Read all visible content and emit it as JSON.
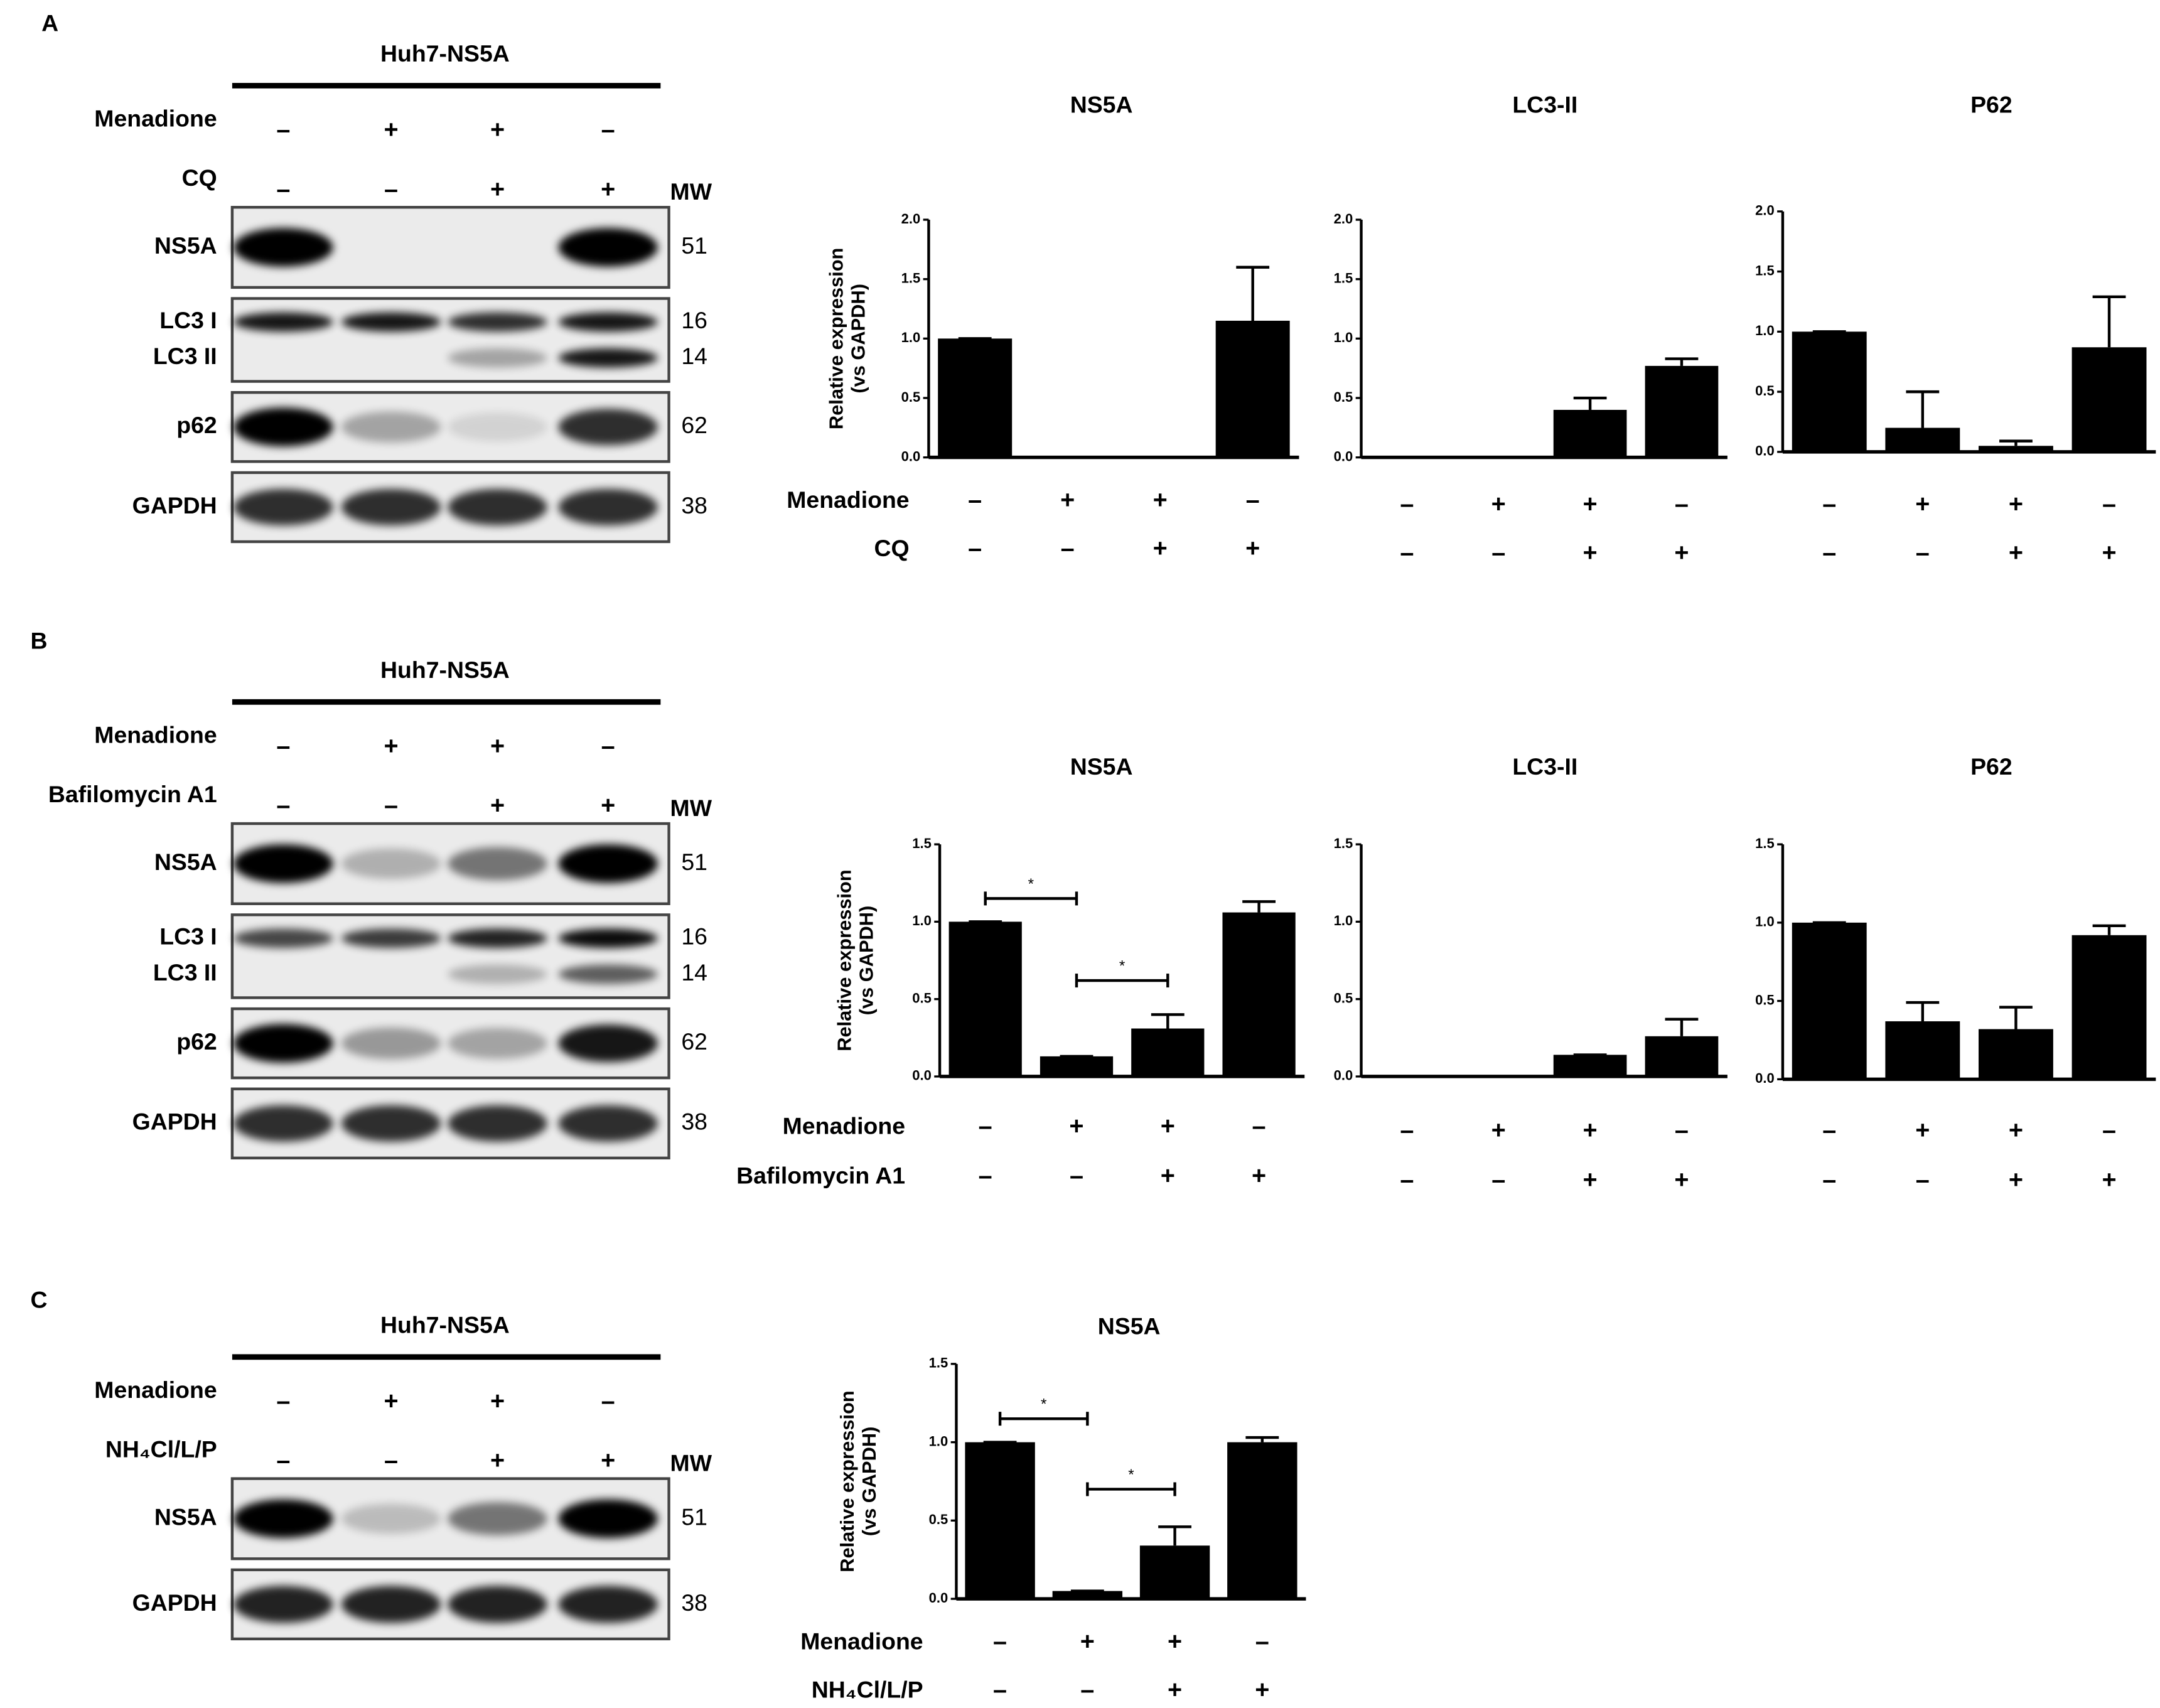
{
  "panel_labels": [
    "A",
    "B",
    "C"
  ],
  "blots": [
    {
      "title": "Huh7-NS5A",
      "treatments": [
        {
          "name": "Menadione",
          "signs": [
            "–",
            "+",
            "+",
            "–"
          ]
        },
        {
          "name": "CQ",
          "signs": [
            "–",
            "–",
            "+",
            "+"
          ]
        }
      ],
      "mw_header": "MW",
      "bands": [
        {
          "labels": [
            "NS5A"
          ],
          "mw": [
            51
          ]
        },
        {
          "labels": [
            "LC3 I",
            "LC3 II"
          ],
          "mw": [
            16,
            14
          ]
        },
        {
          "labels": [
            "p62"
          ],
          "mw": [
            62
          ]
        },
        {
          "labels": [
            "GAPDH"
          ],
          "mw": [
            38
          ]
        }
      ]
    },
    {
      "title": "Huh7-NS5A",
      "treatments": [
        {
          "name": "Menadione",
          "signs": [
            "–",
            "+",
            "+",
            "–"
          ]
        },
        {
          "name": "Bafilomycin A1",
          "signs": [
            "–",
            "–",
            "+",
            "+"
          ]
        }
      ],
      "mw_header": "MW",
      "bands": [
        {
          "labels": [
            "NS5A"
          ],
          "mw": [
            51
          ]
        },
        {
          "labels": [
            "LC3 I",
            "LC3 II"
          ],
          "mw": [
            16,
            14
          ]
        },
        {
          "labels": [
            "p62"
          ],
          "mw": [
            62
          ]
        },
        {
          "labels": [
            "GAPDH"
          ],
          "mw": [
            38
          ]
        }
      ]
    },
    {
      "title": "Huh7-NS5A",
      "treatments": [
        {
          "name": "Menadione",
          "signs": [
            "–",
            "+",
            "+",
            "–"
          ]
        },
        {
          "name": "NH₄Cl/L/P",
          "signs": [
            "–",
            "–",
            "+",
            "+"
          ]
        }
      ],
      "mw_header": "MW",
      "bands": [
        {
          "labels": [
            "NS5A"
          ],
          "mw": [
            51
          ]
        },
        {
          "labels": [
            "GAPDH"
          ],
          "mw": [
            38
          ]
        }
      ]
    }
  ],
  "chart_data": [
    {
      "type": "bar",
      "title": "NS5A",
      "ylabel": [
        "Relative expression",
        "(vs GAPDH)"
      ],
      "color": "#000000",
      "values": [
        1.0,
        0,
        0,
        1.15
      ],
      "errors": [
        0,
        0,
        0,
        0.45
      ],
      "ylim": [
        0,
        2
      ],
      "yticks": [
        {
          "value": 0,
          "label": "0.0"
        },
        0.5,
        {
          "value": 1,
          "label": "1.0"
        },
        1.5,
        {
          "value": 2,
          "label": "2.0"
        }
      ],
      "conditions": [
        {
          "name": "Menadione",
          "signs": [
            "–",
            "+",
            "+",
            "–"
          ]
        },
        {
          "name": "CQ",
          "signs": [
            "–",
            "–",
            "+",
            "+"
          ]
        }
      ]
    },
    {
      "type": "bar",
      "title": "LC3-II",
      "color": "#000000",
      "values": [
        0,
        0,
        0.4,
        0.77
      ],
      "errors": [
        0,
        0,
        0.1,
        0.06
      ],
      "ylim": [
        0,
        2
      ],
      "yticks": [
        {
          "value": 0,
          "label": "0.0"
        },
        0.5,
        {
          "value": 1,
          "label": "1.0"
        },
        1.5,
        {
          "value": 2,
          "label": "2.0"
        }
      ],
      "conditions": [
        {
          "signs": [
            "–",
            "+",
            "+",
            "–"
          ]
        },
        {
          "signs": [
            "–",
            "–",
            "+",
            "+"
          ]
        }
      ]
    },
    {
      "type": "bar",
      "title": "P62",
      "color": "#000000",
      "values": [
        1.0,
        0.2,
        0.05,
        0.87
      ],
      "errors": [
        0,
        0.3,
        0.04,
        0.42
      ],
      "ylim": [
        0,
        2
      ],
      "yticks": [
        {
          "value": 0,
          "label": "0.0"
        },
        0.5,
        {
          "value": 1,
          "label": "1.0"
        },
        1.5,
        {
          "value": 2,
          "label": "2.0"
        }
      ],
      "conditions": [
        {
          "signs": [
            "–",
            "+",
            "+",
            "–"
          ]
        },
        {
          "signs": [
            "–",
            "–",
            "+",
            "+"
          ]
        }
      ]
    },
    {
      "type": "bar",
      "title": "NS5A",
      "ylabel": [
        "Relative expression",
        "(vs GAPDH)"
      ],
      "color": "#000000",
      "values": [
        1.0,
        0.13,
        0.31,
        1.06
      ],
      "errors": [
        0,
        0,
        0.09,
        0.07
      ],
      "ylim": [
        0,
        1.5
      ],
      "yticks": [
        {
          "value": 0,
          "label": "0.0"
        },
        0.5,
        {
          "value": 1,
          "label": "1.0"
        },
        1.5
      ],
      "significance": [
        {
          "text": "*",
          "pair": [
            0,
            1
          ],
          "y": 1.15
        },
        {
          "text": "*",
          "pair": [
            1,
            2
          ],
          "y": 0.62
        }
      ],
      "conditions": [
        {
          "name": "Menadione",
          "signs": [
            "–",
            "+",
            "+",
            "–"
          ]
        },
        {
          "name": "Bafilomycin  A1",
          "signs": [
            "–",
            "–",
            "+",
            "+"
          ]
        }
      ]
    },
    {
      "type": "bar",
      "title": "LC3-II",
      "color": "#000000",
      "values": [
        0,
        0,
        0.14,
        0.26
      ],
      "errors": [
        0,
        0,
        0,
        0.11
      ],
      "ylim": [
        0,
        1.5
      ],
      "yticks": [
        {
          "value": 0,
          "label": "0.0"
        },
        0.5,
        {
          "value": 1,
          "label": "1.0"
        },
        1.5
      ],
      "conditions": [
        {
          "signs": [
            "–",
            "+",
            "+",
            "–"
          ]
        },
        {
          "signs": [
            "–",
            "–",
            "+",
            "+"
          ]
        }
      ]
    },
    {
      "type": "bar",
      "title": "P62",
      "color": "#000000",
      "values": [
        1.0,
        0.37,
        0.32,
        0.92
      ],
      "errors": [
        0,
        0.12,
        0.14,
        0.06
      ],
      "ylim": [
        0,
        1.5
      ],
      "yticks": [
        {
          "value": 0,
          "label": "0.0"
        },
        0.5,
        {
          "value": 1,
          "label": "1.0"
        },
        1.5
      ],
      "conditions": [
        {
          "signs": [
            "–",
            "+",
            "+",
            "–"
          ]
        },
        {
          "signs": [
            "–",
            "–",
            "+",
            "+"
          ]
        }
      ]
    },
    {
      "type": "bar",
      "title": "NS5A",
      "ylabel": [
        "Relative expression",
        "(vs GAPDH)"
      ],
      "color": "#000000",
      "values": [
        1.0,
        0.05,
        0.34,
        1.0
      ],
      "errors": [
        0,
        0,
        0.12,
        0.03
      ],
      "ylim": [
        0,
        1.5
      ],
      "yticks": [
        {
          "value": 0,
          "label": "0.0"
        },
        0.5,
        {
          "value": 1,
          "label": "1.0"
        },
        1.5
      ],
      "significance": [
        {
          "text": "*",
          "pair": [
            0,
            1
          ],
          "y": 1.15
        },
        {
          "text": "*",
          "pair": [
            1,
            2
          ],
          "y": 0.7
        }
      ],
      "conditions": [
        {
          "name": "Menadione",
          "signs": [
            "–",
            "+",
            "+",
            "–"
          ]
        },
        {
          "name": "NH₄Cl/L/P",
          "signs": [
            "–",
            "–",
            "+",
            "+"
          ]
        }
      ]
    }
  ]
}
